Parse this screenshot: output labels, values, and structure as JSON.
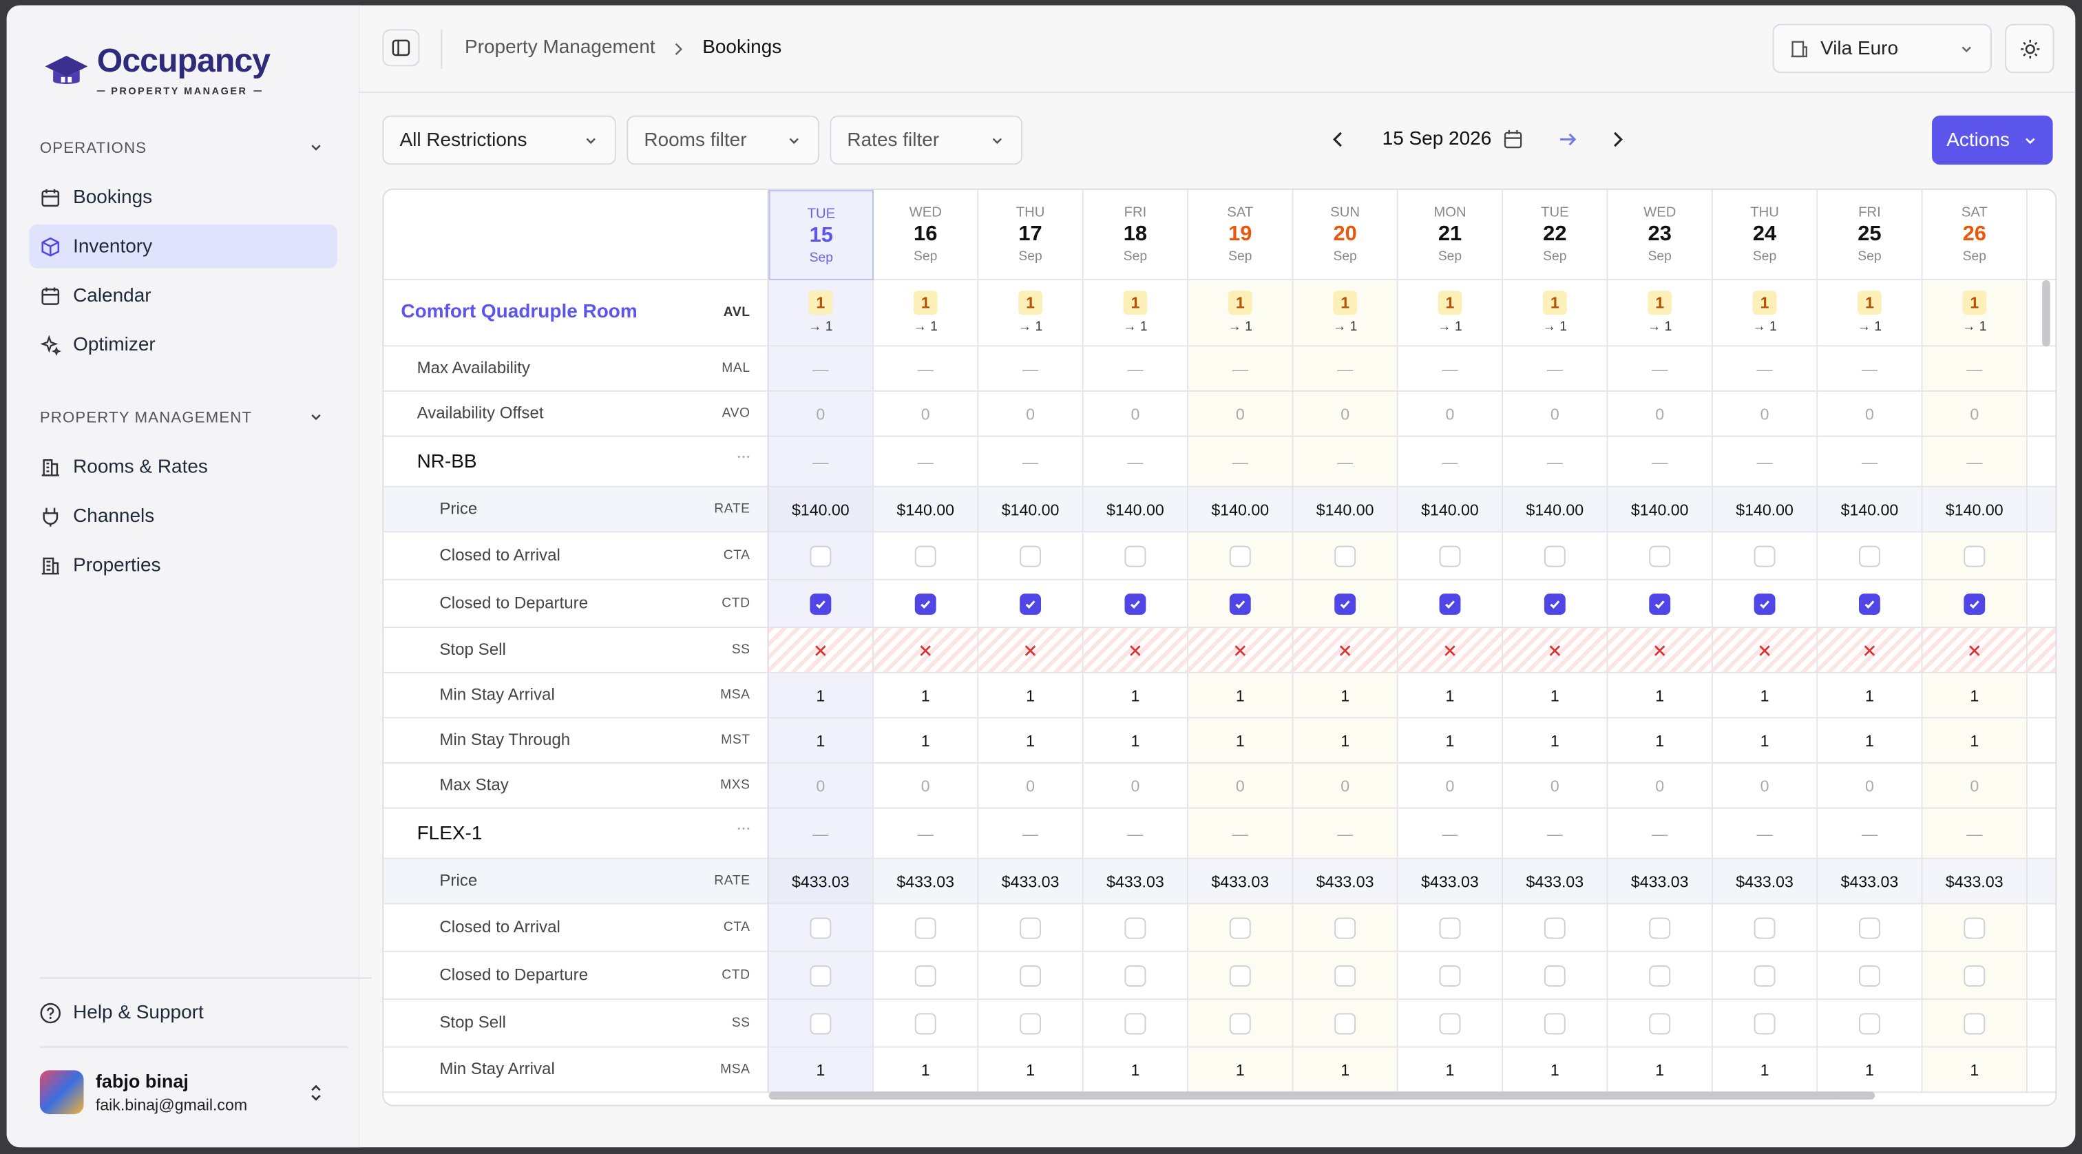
{
  "brand": {
    "name": "Occupancy",
    "tagline": "PROPERTY MANAGER"
  },
  "nav": [
    {
      "title": "OPERATIONS",
      "items": [
        "Bookings",
        "Inventory",
        "Calendar",
        "Optimizer"
      ]
    },
    {
      "title": "PROPERTY MANAGEMENT",
      "items": [
        "Rooms & Rates",
        "Channels",
        "Properties"
      ]
    }
  ],
  "help": "Help & Support",
  "user": {
    "name": "fabjo binaj",
    "email": "faik.binaj@gmail.com"
  },
  "breadcrumb": [
    "Property Management",
    "Bookings"
  ],
  "property": "Vila Euro",
  "filters": [
    "All Restrictions",
    "Rooms filter",
    "Rates filter"
  ],
  "date": "15 Sep 2026",
  "actions": "Actions",
  "days": [
    {
      "dow": "TUE",
      "day": "15",
      "month": "Sep",
      "today": true
    },
    {
      "dow": "WED",
      "day": "16",
      "month": "Sep"
    },
    {
      "dow": "THU",
      "day": "17",
      "month": "Sep"
    },
    {
      "dow": "FRI",
      "day": "18",
      "month": "Sep"
    },
    {
      "dow": "SAT",
      "day": "19",
      "month": "Sep",
      "weekend": true
    },
    {
      "dow": "SUN",
      "day": "20",
      "month": "Sep",
      "weekend": true
    },
    {
      "dow": "MON",
      "day": "21",
      "month": "Sep"
    },
    {
      "dow": "TUE",
      "day": "22",
      "month": "Sep"
    },
    {
      "dow": "WED",
      "day": "23",
      "month": "Sep"
    },
    {
      "dow": "THU",
      "day": "24",
      "month": "Sep"
    },
    {
      "dow": "FRI",
      "day": "25",
      "month": "Sep"
    },
    {
      "dow": "SAT",
      "day": "26",
      "month": "Sep",
      "weekend": true
    }
  ],
  "room": {
    "name": "Comfort Quadruple Room",
    "code": "AVL",
    "avl": [
      "1",
      "1",
      "1",
      "1",
      "1",
      "1",
      "1",
      "1",
      "1",
      "1",
      "1",
      "1"
    ],
    "avl_next": [
      "→ 1",
      "→ 1",
      "→ 1",
      "→ 1",
      "→ 1",
      "→ 1",
      "→ 1",
      "→ 1",
      "→ 1",
      "→ 1",
      "→ 1",
      "→ 1"
    ]
  },
  "rows": [
    {
      "kind": "text",
      "label": "Max Availability",
      "code": "MAL",
      "values": [
        "—",
        "—",
        "—",
        "—",
        "—",
        "—",
        "—",
        "—",
        "—",
        "—",
        "—",
        "—"
      ],
      "muted": true
    },
    {
      "kind": "text",
      "label": "Availability Offset",
      "code": "AVO",
      "values": [
        "0",
        "0",
        "0",
        "0",
        "0",
        "0",
        "0",
        "0",
        "0",
        "0",
        "0",
        "0"
      ],
      "muted": true
    },
    {
      "kind": "rate",
      "label": "NR-BB",
      "values": [
        "—",
        "—",
        "—",
        "—",
        "—",
        "—",
        "—",
        "—",
        "—",
        "—",
        "—",
        "—"
      ],
      "muted": true
    },
    {
      "kind": "price",
      "label": "Price",
      "code": "RATE",
      "values": [
        "$140.00",
        "$140.00",
        "$140.00",
        "$140.00",
        "$140.00",
        "$140.00",
        "$140.00",
        "$140.00",
        "$140.00",
        "$140.00",
        "$140.00",
        "$140.00"
      ]
    },
    {
      "kind": "check",
      "label": "Closed to Arrival",
      "code": "CTA",
      "values": [
        false,
        false,
        false,
        false,
        false,
        false,
        false,
        false,
        false,
        false,
        false,
        false
      ]
    },
    {
      "kind": "check",
      "label": "Closed to Departure",
      "code": "CTD",
      "values": [
        true,
        true,
        true,
        true,
        true,
        true,
        true,
        true,
        true,
        true,
        true,
        true
      ]
    },
    {
      "kind": "stop",
      "label": "Stop Sell",
      "code": "SS",
      "values": [
        true,
        true,
        true,
        true,
        true,
        true,
        true,
        true,
        true,
        true,
        true,
        true
      ]
    },
    {
      "kind": "text",
      "label": "Min Stay Arrival",
      "code": "MSA",
      "values": [
        "1",
        "1",
        "1",
        "1",
        "1",
        "1",
        "1",
        "1",
        "1",
        "1",
        "1",
        "1"
      ]
    },
    {
      "kind": "text",
      "label": "Min Stay Through",
      "code": "MST",
      "values": [
        "1",
        "1",
        "1",
        "1",
        "1",
        "1",
        "1",
        "1",
        "1",
        "1",
        "1",
        "1"
      ]
    },
    {
      "kind": "text",
      "label": "Max Stay",
      "code": "MXS",
      "values": [
        "0",
        "0",
        "0",
        "0",
        "0",
        "0",
        "0",
        "0",
        "0",
        "0",
        "0",
        "0"
      ],
      "muted": true
    },
    {
      "kind": "rate",
      "label": "FLEX-1",
      "values": [
        "—",
        "—",
        "—",
        "—",
        "—",
        "—",
        "—",
        "—",
        "—",
        "—",
        "—",
        "—"
      ],
      "muted": true
    },
    {
      "kind": "price",
      "label": "Price",
      "code": "RATE",
      "values": [
        "$433.03",
        "$433.03",
        "$433.03",
        "$433.03",
        "$433.03",
        "$433.03",
        "$433.03",
        "$433.03",
        "$433.03",
        "$433.03",
        "$433.03",
        "$433.03"
      ]
    },
    {
      "kind": "check",
      "label": "Closed to Arrival",
      "code": "CTA",
      "values": [
        false,
        false,
        false,
        false,
        false,
        false,
        false,
        false,
        false,
        false,
        false,
        false
      ]
    },
    {
      "kind": "check",
      "label": "Closed to Departure",
      "code": "CTD",
      "values": [
        false,
        false,
        false,
        false,
        false,
        false,
        false,
        false,
        false,
        false,
        false,
        false
      ]
    },
    {
      "kind": "check",
      "label": "Stop Sell",
      "code": "SS",
      "values": [
        false,
        false,
        false,
        false,
        false,
        false,
        false,
        false,
        false,
        false,
        false,
        false
      ]
    },
    {
      "kind": "text",
      "label": "Min Stay Arrival",
      "code": "MSA",
      "values": [
        "1",
        "1",
        "1",
        "1",
        "1",
        "1",
        "1",
        "1",
        "1",
        "1",
        "1",
        "1"
      ]
    }
  ]
}
